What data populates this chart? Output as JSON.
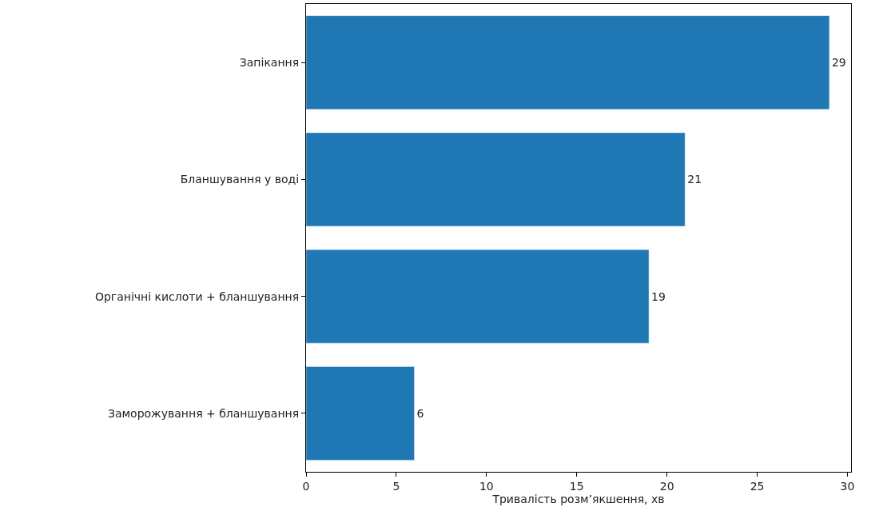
{
  "chart_data": {
    "type": "bar",
    "orientation": "horizontal",
    "categories": [
      "Запікання",
      "Бланшування у воді",
      "Органічні кислоти + бланшування",
      "Заморожування + бланшування"
    ],
    "values": [
      29,
      21,
      19,
      6
    ],
    "color": "#1f77b4",
    "xlabel": "Тривалість розм’якшення, хв",
    "xlim": [
      0,
      30.2
    ],
    "xticks": [
      0,
      5,
      10,
      15,
      20,
      25,
      30
    ],
    "data_labels": true
  }
}
